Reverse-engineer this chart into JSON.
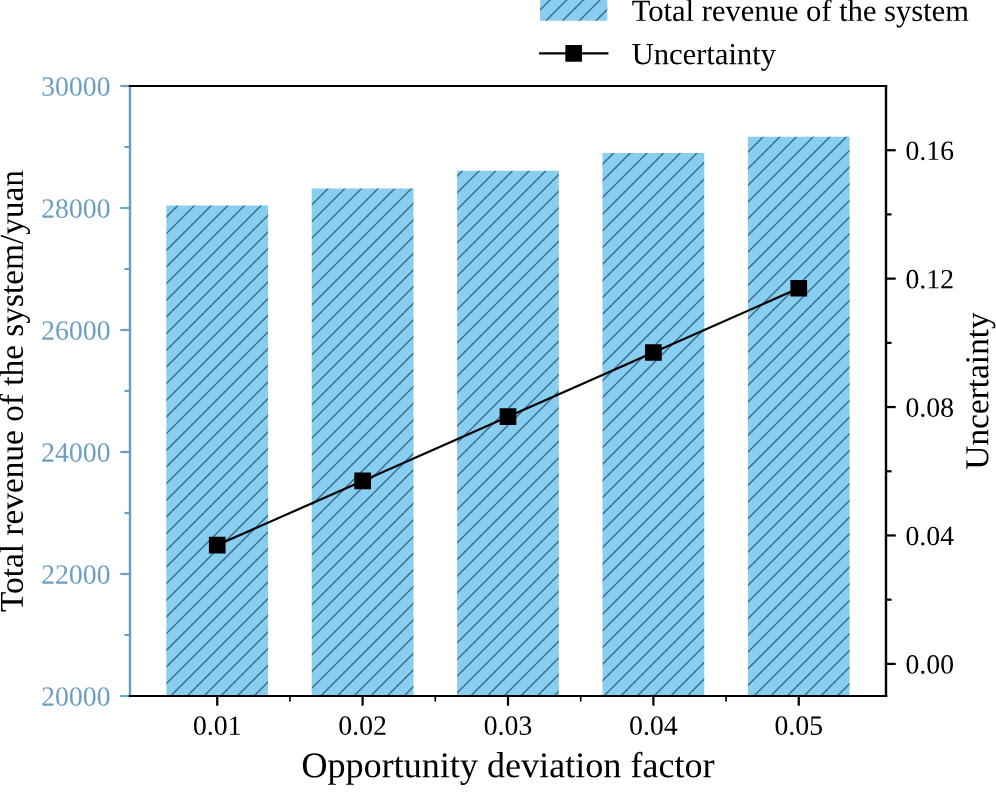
{
  "chart_data": {
    "type": "bar",
    "xlabel": "Opportunity deviation factor",
    "ylabel": "Total revenue of the system/yuan",
    "y2label": "Uncertainty",
    "categories": [
      "0.01",
      "0.02",
      "0.03",
      "0.04",
      "0.05"
    ],
    "series": [
      {
        "name": "Total revenue of the system",
        "color": "#87cef0",
        "values": [
          28040,
          28320,
          28610,
          28900,
          29170
        ]
      },
      {
        "name": "Uncertainty",
        "type": "line",
        "axis": "y2",
        "color": "#000000",
        "marker": "square",
        "values": [
          0.037,
          0.057,
          0.077,
          0.097,
          0.117
        ]
      }
    ],
    "ylim": [
      20000,
      30000
    ],
    "yticks": [
      20000,
      {
        "value": 21000,
        "label": null
      },
      22000,
      {
        "value": 23000,
        "label": null
      },
      24000,
      {
        "value": 25000,
        "label": null
      },
      26000,
      {
        "value": 27000,
        "label": null
      },
      28000,
      {
        "value": 29000,
        "label": null
      },
      30000
    ],
    "y2lim": [
      -0.01,
      0.18
    ],
    "y2ticks": [
      {
        "value": 0,
        "label": "0.00"
      },
      {
        "value": 0.02,
        "label": null
      },
      0.04,
      {
        "value": 0.06,
        "label": null
      },
      0.08,
      {
        "value": 0.1,
        "label": null
      },
      0.12,
      {
        "value": 0.14,
        "label": null
      },
      0.16
    ],
    "legend": "top right",
    "grid": false
  }
}
